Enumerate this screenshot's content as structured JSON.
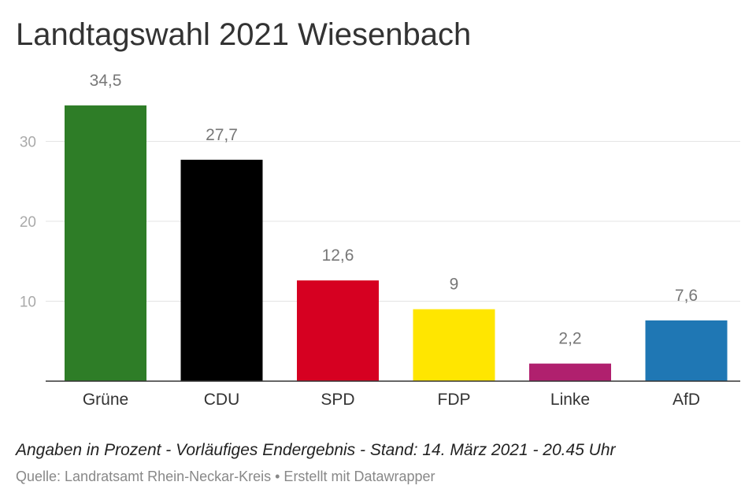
{
  "chart_data": {
    "type": "bar",
    "title": "Landtagswahl 2021 Wiesenbach",
    "categories": [
      "Grüne",
      "CDU",
      "SPD",
      "FDP",
      "Linke",
      "AfD"
    ],
    "values": [
      34.5,
      27.7,
      12.6,
      9,
      2.2,
      7.6
    ],
    "value_labels": [
      "34,5",
      "27,7",
      "12,6",
      "9",
      "2,2",
      "7,6"
    ],
    "colors": [
      "#2e7d27",
      "#000000",
      "#d60021",
      "#ffe600",
      "#b0206e",
      "#1f77b4"
    ],
    "yticks": [
      10,
      20,
      30
    ],
    "ytick_labels": [
      "10",
      "20",
      "30"
    ],
    "ylim": [
      0,
      36
    ],
    "grid": true,
    "notes": "Angaben in Prozent - Vorläufiges Endergebnis - Stand: 14. März 2021 - 20.45 Uhr",
    "source": "Quelle: Landratsamt Rhein-Neckar-Kreis • Erstellt mit Datawrapper"
  }
}
